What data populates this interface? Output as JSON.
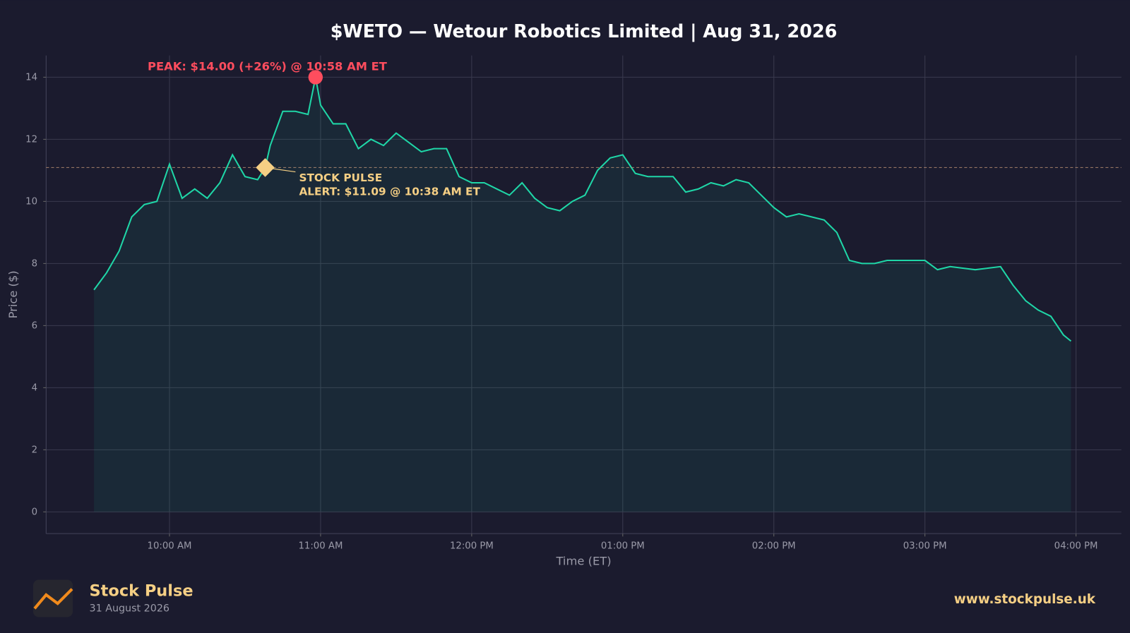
{
  "chart_data": {
    "type": "line",
    "title": "$WETO — Wetour Robotics Limited  |  Aug 31, 2026",
    "x_label": "Time (ET)",
    "y_label": "Price ($)",
    "x": [
      "09:30",
      "09:35",
      "09:40",
      "09:45",
      "09:50",
      "09:55",
      "10:00",
      "10:05",
      "10:10",
      "10:15",
      "10:20",
      "10:25",
      "10:30",
      "10:35",
      "10:38",
      "10:40",
      "10:45",
      "10:50",
      "10:55",
      "10:58",
      "11:00",
      "11:05",
      "11:10",
      "11:15",
      "11:20",
      "11:25",
      "11:30",
      "11:35",
      "11:40",
      "11:45",
      "11:50",
      "11:55",
      "12:00",
      "12:05",
      "12:10",
      "12:15",
      "12:20",
      "12:25",
      "12:30",
      "12:35",
      "12:40",
      "12:45",
      "12:50",
      "12:55",
      "13:00",
      "13:05",
      "13:10",
      "13:15",
      "13:20",
      "13:25",
      "13:30",
      "13:35",
      "13:40",
      "13:45",
      "13:50",
      "13:55",
      "14:00",
      "14:05",
      "14:10",
      "14:15",
      "14:20",
      "14:25",
      "14:30",
      "14:35",
      "14:40",
      "14:45",
      "14:50",
      "14:55",
      "15:00",
      "15:05",
      "15:10",
      "15:15",
      "15:20",
      "15:25",
      "15:30",
      "15:35",
      "15:40",
      "15:45",
      "15:50",
      "15:55",
      "15:58"
    ],
    "series": [
      {
        "name": "WETO",
        "color": "#1fd6a7",
        "values": [
          7.15,
          7.7,
          8.4,
          9.5,
          9.9,
          10.0,
          11.2,
          10.1,
          10.4,
          10.1,
          10.6,
          11.5,
          10.8,
          10.7,
          11.09,
          11.8,
          12.9,
          12.9,
          12.8,
          14.0,
          13.1,
          12.5,
          12.5,
          11.7,
          12.0,
          11.8,
          12.2,
          11.9,
          11.6,
          11.7,
          11.7,
          10.8,
          10.6,
          10.6,
          10.4,
          10.2,
          10.6,
          10.1,
          9.8,
          9.7,
          10.0,
          10.2,
          11.0,
          11.4,
          11.5,
          10.9,
          10.8,
          10.8,
          10.8,
          10.3,
          10.4,
          10.6,
          10.5,
          10.7,
          10.6,
          10.2,
          9.8,
          9.5,
          9.6,
          9.5,
          9.4,
          9.0,
          8.1,
          8.0,
          8.0,
          8.1,
          8.1,
          8.1,
          8.1,
          7.8,
          7.9,
          7.85,
          7.8,
          7.85,
          7.9,
          7.3,
          6.8,
          6.5,
          6.3,
          5.7,
          5.5
        ]
      }
    ],
    "xlim": [
      "09:11",
      "16:18"
    ],
    "ylim": [
      -0.7,
      14.7
    ],
    "xticks": [
      {
        "value": "10:00",
        "label": "10:00 AM"
      },
      {
        "value": "11:00",
        "label": "11:00 AM"
      },
      {
        "value": "12:00",
        "label": "12:00 PM"
      },
      {
        "value": "13:00",
        "label": "01:00 PM"
      },
      {
        "value": "14:00",
        "label": "02:00 PM"
      },
      {
        "value": "15:00",
        "label": "03:00 PM"
      },
      {
        "value": "16:00",
        "label": "04:00 PM"
      }
    ],
    "yticks": [
      0,
      2,
      4,
      6,
      8,
      10,
      12,
      14
    ],
    "grid": true,
    "annotations": [
      {
        "text": "PEAK: $14.00 (+26%) @ 10:58 AM ET",
        "x": "10:58",
        "y": 14.0,
        "color": "#ff4d5e"
      },
      {
        "lines": [
          "STOCK PULSE",
          "ALERT: $11.09 @ 10:38 AM ET"
        ],
        "x": "10:38",
        "y": 11.09,
        "color": "#f5cf84"
      }
    ]
  },
  "footer": {
    "brand": "Stock Pulse",
    "date": "31 August 2026",
    "url": "www.stockpulse.uk"
  }
}
